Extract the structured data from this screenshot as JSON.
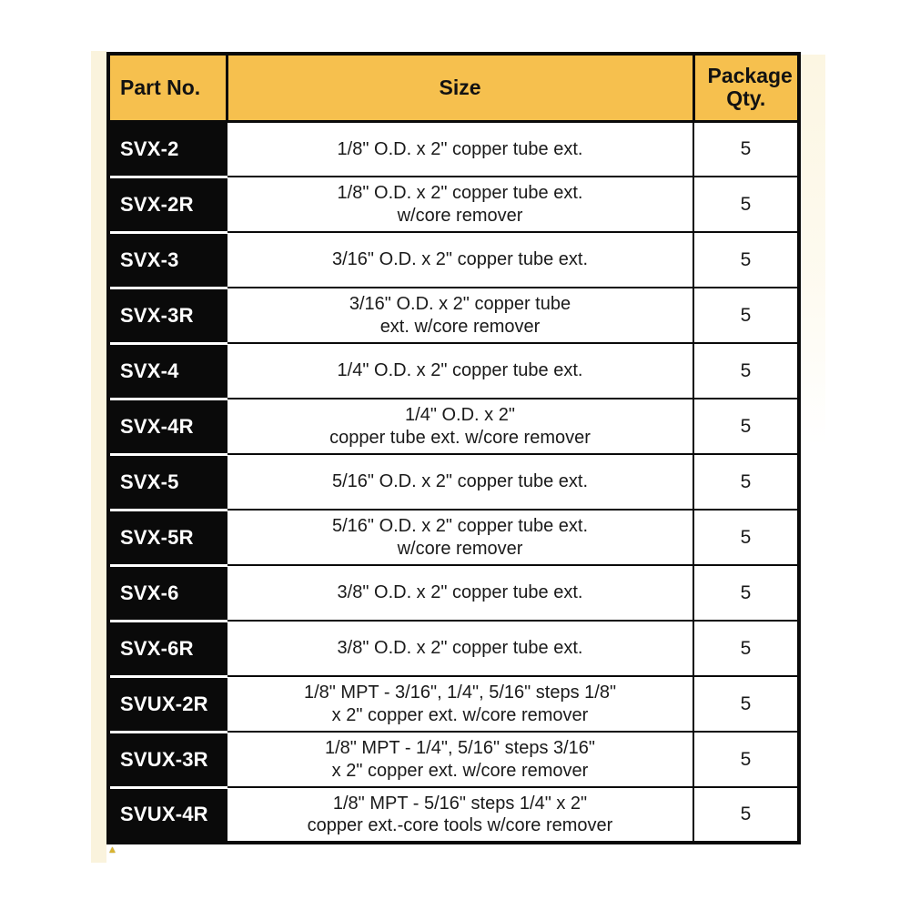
{
  "page": {
    "background": "#ffffff",
    "accent_yellow": "#f6c04e",
    "cell_black": "#0a0a0a",
    "scan_band_cream": "#faf3dd",
    "caret_gold": "#d9b430"
  },
  "icons": {
    "caret_up": "▲"
  },
  "table": {
    "columns": [
      "Part No.",
      "Size",
      "Package Qty."
    ],
    "rows": [
      {
        "part": "SVX-2",
        "size_lines": [
          "1/8\" O.D. x 2\" copper tube ext."
        ],
        "qty": "5"
      },
      {
        "part": "SVX-2R",
        "size_lines": [
          "1/8\" O.D. x 2\" copper tube ext.",
          "w/core remover"
        ],
        "qty": "5"
      },
      {
        "part": "SVX-3",
        "size_lines": [
          "3/16\" O.D. x 2\" copper tube ext."
        ],
        "qty": "5"
      },
      {
        "part": "SVX-3R",
        "size_lines": [
          "3/16\" O.D. x 2\" copper tube",
          "ext. w/core remover"
        ],
        "qty": "5"
      },
      {
        "part": "SVX-4",
        "size_lines": [
          "1/4\" O.D. x 2\" copper tube ext."
        ],
        "qty": "5"
      },
      {
        "part": "SVX-4R",
        "size_lines": [
          "1/4\" O.D. x 2\"",
          "copper tube ext. w/core remover"
        ],
        "qty": "5"
      },
      {
        "part": "SVX-5",
        "size_lines": [
          "5/16\" O.D. x 2\" copper tube ext."
        ],
        "qty": "5"
      },
      {
        "part": "SVX-5R",
        "size_lines": [
          "5/16\" O.D. x 2\" copper tube ext.",
          "w/core remover"
        ],
        "qty": "5"
      },
      {
        "part": "SVX-6",
        "size_lines": [
          "3/8\" O.D. x 2\" copper tube ext."
        ],
        "qty": "5"
      },
      {
        "part": "SVX-6R",
        "size_lines": [
          "3/8\" O.D. x 2\" copper tube ext."
        ],
        "qty": "5"
      },
      {
        "part": "SVUX-2R",
        "size_lines": [
          "1/8\" MPT - 3/16\", 1/4\", 5/16\" steps 1/8\"",
          "x 2\" copper ext. w/core remover"
        ],
        "qty": "5"
      },
      {
        "part": "SVUX-3R",
        "size_lines": [
          "1/8\" MPT - 1/4\", 5/16\" steps 3/16\"",
          "x 2\" copper ext. w/core remover"
        ],
        "qty": "5"
      },
      {
        "part": "SVUX-4R",
        "size_lines": [
          "1/8\" MPT - 5/16\" steps 1/4\" x 2\"",
          "copper ext.-core tools w/core remover"
        ],
        "qty": "5"
      }
    ]
  }
}
